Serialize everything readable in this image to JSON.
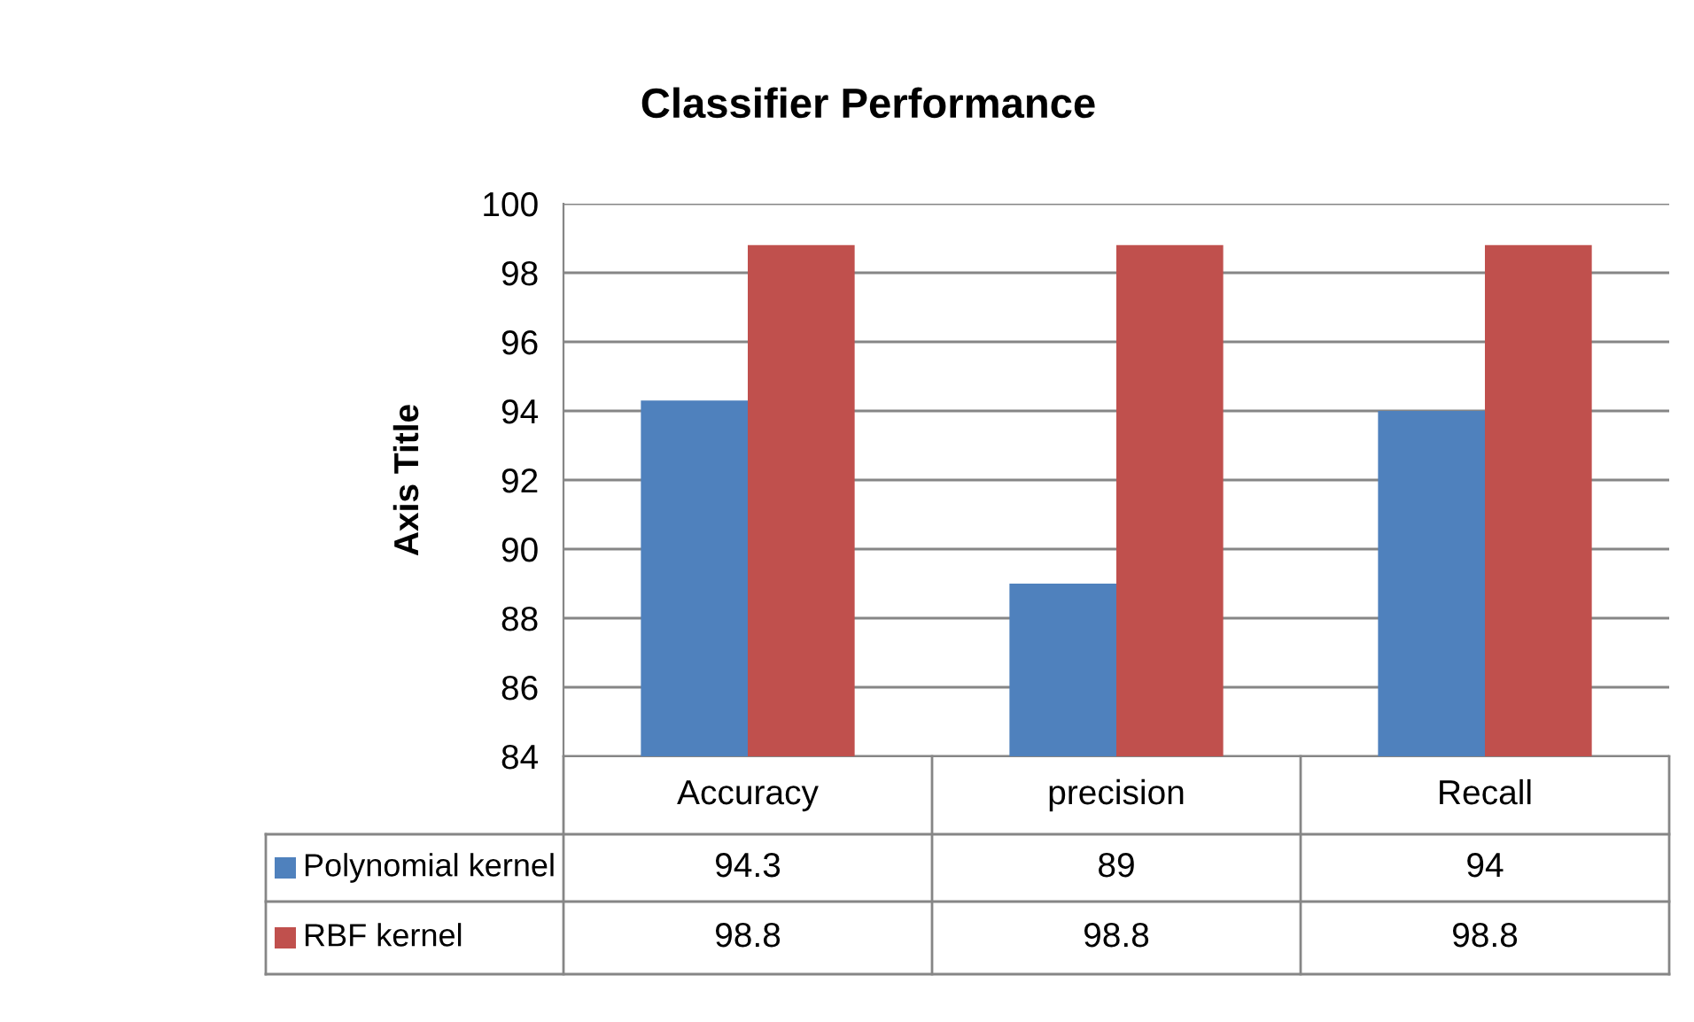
{
  "chart_data": {
    "type": "bar",
    "title": "Classifier Performance",
    "ylabel": "Axis Title",
    "categories": [
      "Accuracy",
      "precision",
      "Recall"
    ],
    "series": [
      {
        "name": "Polynomial kernel",
        "color": "#4f81bd",
        "values": [
          94.3,
          89,
          94
        ]
      },
      {
        "name": "RBF kernel",
        "color": "#c0504d",
        "values": [
          98.8,
          98.8,
          98.8
        ]
      }
    ],
    "ylim": [
      84,
      100
    ],
    "yticks": [
      84,
      86,
      88,
      90,
      92,
      94,
      96,
      98,
      100
    ],
    "grid": "y",
    "legend": "bottom left",
    "data_labels": true
  }
}
